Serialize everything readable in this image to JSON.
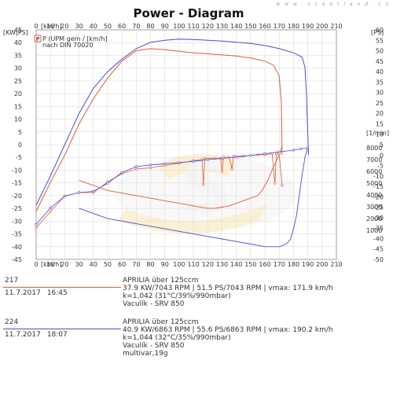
{
  "header": {
    "title": "Power - Diagram",
    "site": "w w w . s c o o t l a n d . c z"
  },
  "chart_data": {
    "type": "line",
    "title": "Power - Diagram",
    "x_axis": {
      "unit_label": "[km/h]",
      "range": [
        0,
        210
      ],
      "ticks": [
        0,
        10,
        20,
        30,
        40,
        50,
        60,
        70,
        80,
        90,
        100,
        110,
        120,
        130,
        140,
        150,
        160,
        170,
        180,
        190,
        200,
        210
      ]
    },
    "left_axis": {
      "unit_label": "[KW|PS]",
      "range": [
        -45,
        45
      ],
      "ticks": [
        45,
        40,
        35,
        30,
        25,
        20,
        15,
        10,
        5,
        0,
        -5,
        -10,
        -15,
        -20,
        -25,
        -30,
        -35,
        -40,
        -45
      ]
    },
    "right_axis_ps": {
      "unit_label": "[PS]",
      "range": [
        -50,
        60
      ],
      "ticks": [
        60,
        55,
        50,
        45,
        40,
        35,
        30,
        25,
        20,
        15,
        10,
        5,
        0,
        -5,
        -10,
        -15,
        -20,
        -25,
        -30,
        -35,
        -40,
        -45,
        -50
      ]
    },
    "right_axis_rpm": {
      "unit_label": "[1/min]",
      "range": [
        0,
        9000
      ],
      "ticks": [
        8000,
        7000,
        6000,
        5000,
        4000,
        3000,
        2000,
        1000
      ]
    },
    "plot_legend": {
      "symbol": "P",
      "line1": "P (UPM gem / [km/h]",
      "line2": "nach DIN 70020"
    },
    "grid": true,
    "series": [
      {
        "name": "217",
        "color": "#e05a3a",
        "power_ps": [
          [
            0,
            -27
          ],
          [
            10,
            -13
          ],
          [
            20,
            0
          ],
          [
            30,
            15
          ],
          [
            40,
            27
          ],
          [
            50,
            37
          ],
          [
            60,
            45
          ],
          [
            70,
            50
          ],
          [
            80,
            51
          ],
          [
            90,
            50.5
          ],
          [
            100,
            49.8
          ],
          [
            110,
            49
          ],
          [
            120,
            48.5
          ],
          [
            130,
            48
          ],
          [
            140,
            47.5
          ],
          [
            150,
            46.5
          ],
          [
            160,
            45
          ],
          [
            166,
            43
          ],
          [
            170,
            38
          ],
          [
            171.5,
            25
          ],
          [
            172,
            0
          ]
        ],
        "rpm": [
          [
            0,
            1200
          ],
          [
            10,
            2600
          ],
          [
            20,
            3900
          ],
          [
            30,
            4200
          ],
          [
            40,
            4200
          ],
          [
            50,
            5100
          ],
          [
            60,
            5800
          ],
          [
            70,
            6200
          ],
          [
            80,
            6300
          ],
          [
            90,
            6500
          ],
          [
            100,
            6700
          ],
          [
            110,
            6900
          ],
          [
            116,
            7000
          ],
          [
            117,
            4900
          ],
          [
            118,
            7100
          ],
          [
            125,
            7100
          ],
          [
            129,
            7100
          ],
          [
            130,
            6000
          ],
          [
            131,
            7200
          ],
          [
            135,
            7200
          ],
          [
            137,
            6200
          ],
          [
            138,
            7300
          ],
          [
            145,
            7300
          ],
          [
            155,
            7400
          ],
          [
            160,
            7400
          ],
          [
            165,
            7500
          ],
          [
            167,
            5000
          ],
          [
            168,
            7500
          ],
          [
            170,
            7500
          ],
          [
            172,
            4800
          ]
        ],
        "decel": [
          [
            172,
            -0.5
          ],
          [
            170,
            -4
          ],
          [
            165,
            -10
          ],
          [
            162,
            -14
          ],
          [
            158,
            -18
          ],
          [
            155,
            -20
          ],
          [
            150,
            -21
          ],
          [
            145,
            -22
          ],
          [
            140,
            -23
          ],
          [
            135,
            -24
          ],
          [
            130,
            -24.5
          ],
          [
            125,
            -25
          ],
          [
            120,
            -25
          ],
          [
            110,
            -24
          ],
          [
            100,
            -23
          ],
          [
            90,
            -22
          ],
          [
            80,
            -21
          ],
          [
            70,
            -20
          ],
          [
            60,
            -19
          ],
          [
            50,
            -18
          ],
          [
            40,
            -16
          ],
          [
            30,
            -14
          ]
        ]
      },
      {
        "name": "224",
        "color": "#4a4ad6",
        "power_ps": [
          [
            0,
            -24
          ],
          [
            10,
            -10
          ],
          [
            20,
            5
          ],
          [
            30,
            20
          ],
          [
            40,
            32
          ],
          [
            50,
            40
          ],
          [
            60,
            46
          ],
          [
            70,
            51
          ],
          [
            80,
            54
          ],
          [
            90,
            55
          ],
          [
            100,
            55.6
          ],
          [
            110,
            55.4
          ],
          [
            120,
            55
          ],
          [
            130,
            54.6
          ],
          [
            140,
            54.1
          ],
          [
            150,
            53.5
          ],
          [
            160,
            52.5
          ],
          [
            170,
            51
          ],
          [
            180,
            49
          ],
          [
            186,
            47
          ],
          [
            188,
            42
          ],
          [
            189,
            30
          ],
          [
            190,
            10
          ],
          [
            190.5,
            0
          ]
        ],
        "rpm": [
          [
            0,
            1500
          ],
          [
            10,
            2900
          ],
          [
            20,
            3900
          ],
          [
            30,
            4200
          ],
          [
            40,
            4300
          ],
          [
            50,
            5000
          ],
          [
            60,
            5900
          ],
          [
            70,
            6400
          ],
          [
            80,
            6550
          ],
          [
            90,
            6650
          ],
          [
            100,
            6750
          ],
          [
            110,
            6850
          ],
          [
            120,
            7000
          ],
          [
            130,
            7100
          ],
          [
            140,
            7200
          ],
          [
            150,
            7350
          ],
          [
            160,
            7500
          ],
          [
            170,
            7650
          ],
          [
            180,
            7800
          ],
          [
            185,
            7900
          ],
          [
            190,
            8000
          ]
        ],
        "decel": [
          [
            190,
            -1
          ],
          [
            188,
            -5
          ],
          [
            186,
            -12
          ],
          [
            184,
            -20
          ],
          [
            182,
            -28
          ],
          [
            180,
            -33
          ],
          [
            178,
            -37
          ],
          [
            175,
            -39
          ],
          [
            170,
            -40
          ],
          [
            160,
            -40
          ],
          [
            150,
            -39
          ],
          [
            140,
            -38
          ],
          [
            130,
            -37
          ],
          [
            120,
            -36
          ],
          [
            110,
            -35
          ],
          [
            100,
            -34
          ],
          [
            90,
            -33
          ],
          [
            80,
            -32
          ],
          [
            70,
            -31
          ],
          [
            60,
            -30
          ],
          [
            50,
            -29
          ],
          [
            40,
            -27
          ],
          [
            30,
            -25
          ]
        ]
      }
    ]
  },
  "runs": [
    {
      "id": "217",
      "date": "11.7.2017",
      "time": "16:45",
      "color": "#e05a3a",
      "vehicle": "APRILIA über 125ccm",
      "stats": "37.9 KW/7043 RPM  |  51.5 PS/7043 RPM  |  vmax: 171.9 km/h",
      "conditions": "k=1,042 (31°C/39%/990mbar)",
      "operator": "Vaculík - SRV 850",
      "extra": ""
    },
    {
      "id": "224",
      "date": "11.7.2017",
      "time": "18:07",
      "color": "#4a4ad6",
      "vehicle": "APRILIA über 125ccm",
      "stats": "40.9 KW/6863 RPM  |  55.6 PS/6863 RPM  |  vmax: 190.2 km/h",
      "conditions": "k=1,044 (32°C/35%/990mbar)",
      "operator": "Vaculík - SRV 850",
      "extra": "multivar,19g"
    }
  ]
}
